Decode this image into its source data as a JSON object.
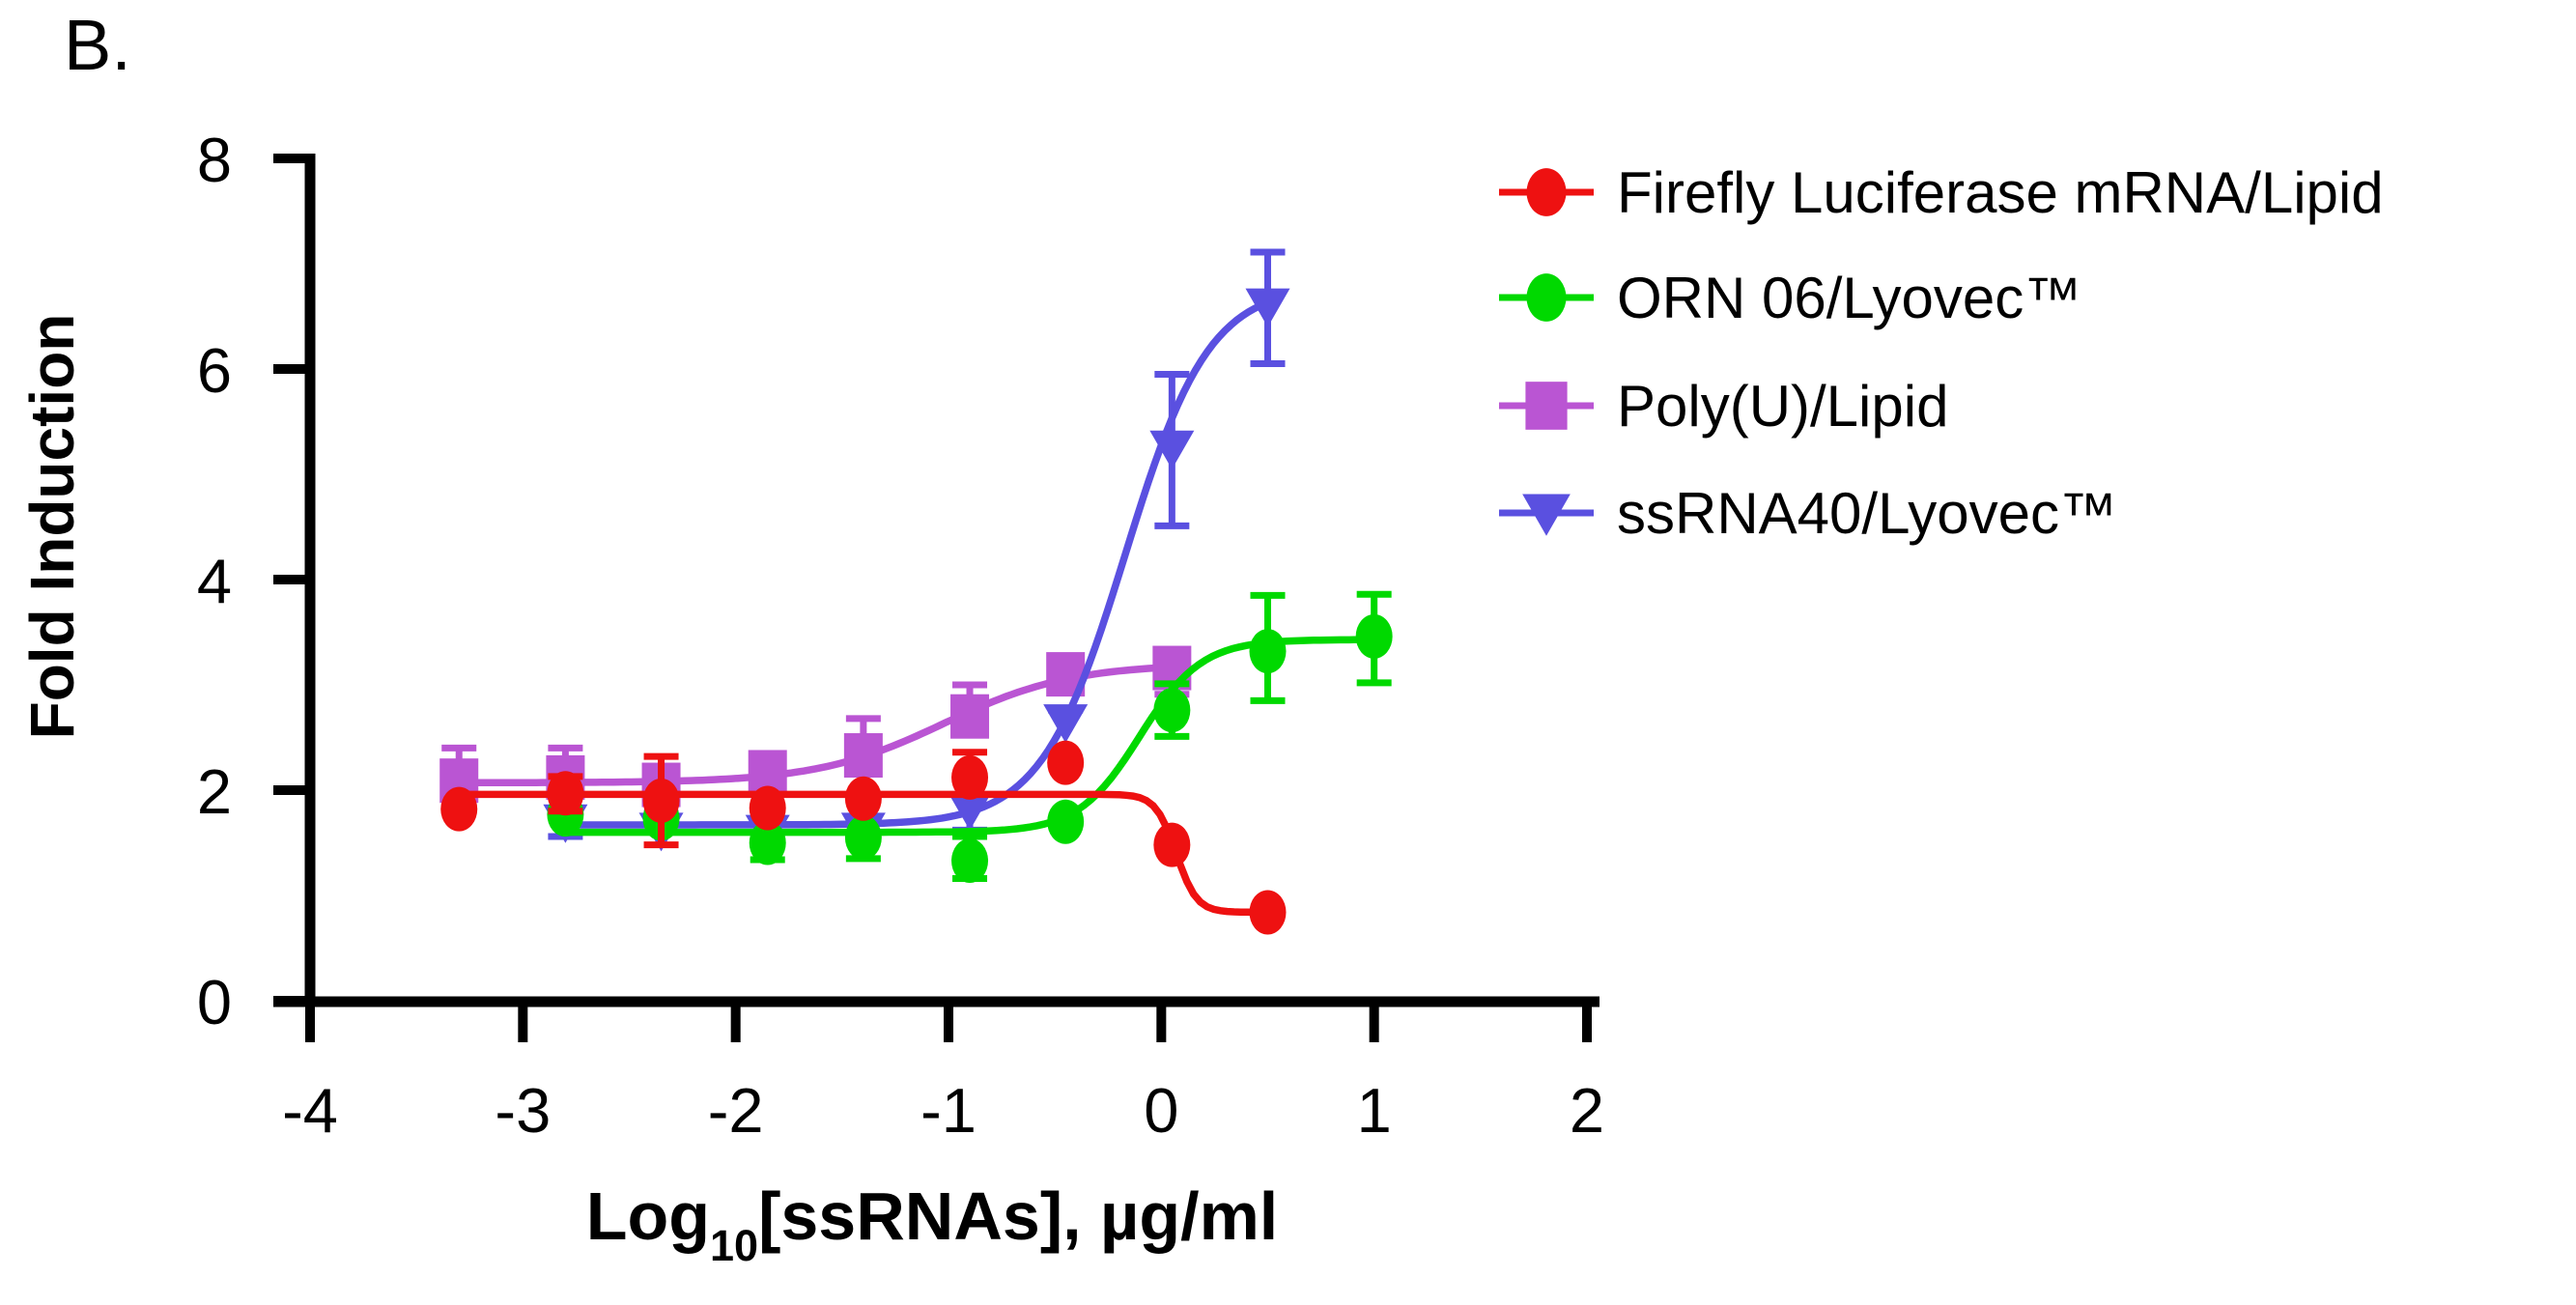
{
  "panel_label": "B.",
  "figure": {
    "background": "#ffffff",
    "axis_color": "#000000",
    "text_color": "#000000"
  },
  "chart_data": {
    "type": "scatter",
    "title": "",
    "xlabel_parts": {
      "prefix": "Log",
      "subscript": "10",
      "suffix": "[ssRNAs], µg/ml"
    },
    "ylabel": "Fold Induction",
    "xlim": [
      -4,
      2
    ],
    "ylim": [
      0,
      8
    ],
    "xticks": [
      -4,
      -3,
      -2,
      -1,
      0,
      1,
      2
    ],
    "yticks": [
      0,
      2,
      4,
      6,
      8
    ],
    "grid": false,
    "legend_position": "right",
    "draw_order": [
      "polyu",
      "ssrna40",
      "orn06",
      "firefly"
    ],
    "series": [
      {
        "id": "firefly",
        "name": "Firefly Luciferase mRNA/Lipid",
        "color": "#ee1111",
        "marker": "circle",
        "x": [
          -3.3,
          -2.8,
          -2.35,
          -1.85,
          -1.4,
          -0.9,
          -0.45,
          0.05,
          0.5
        ],
        "y": [
          1.82,
          1.97,
          1.9,
          1.83,
          1.92,
          2.12,
          2.26,
          1.48,
          0.84
        ],
        "err_up": [
          0,
          0.16,
          0.42,
          0,
          0,
          0.24,
          0,
          0,
          0
        ],
        "err_down": [
          0,
          0.17,
          0.42,
          0,
          0,
          0,
          0,
          0,
          0
        ],
        "fit": {
          "type": "4PL",
          "left": 1.96,
          "right": 0.84,
          "log_ec50": 0.07,
          "hill": 9.0,
          "x_start": -3.3,
          "x_end": 0.5
        }
      },
      {
        "id": "orn06",
        "name": "ORN 06/Lyovec™",
        "color": "#00d900",
        "marker": "circle",
        "x": [
          -2.8,
          -2.35,
          -1.85,
          -1.4,
          -0.9,
          -0.45,
          0.05,
          0.5,
          1.0
        ],
        "y": [
          1.77,
          1.73,
          1.5,
          1.55,
          1.33,
          1.7,
          2.76,
          3.32,
          3.46
        ],
        "err_up": [
          0,
          0,
          0,
          0,
          0.23,
          0,
          0.25,
          0.53,
          0.4
        ],
        "err_down": [
          0,
          0,
          0.16,
          0.2,
          0.17,
          0,
          0.25,
          0.47,
          0.44
        ],
        "fit": {
          "type": "4PL",
          "left": 1.6,
          "right": 3.43,
          "log_ec50": -0.1,
          "hill": 3.0,
          "x_start": -2.8,
          "x_end": 1.0
        }
      },
      {
        "id": "polyu",
        "name": "Poly(U)/Lipid",
        "color": "#ba55d3",
        "marker": "square",
        "x": [
          -3.3,
          -2.8,
          -2.35,
          -1.85,
          -1.4,
          -0.9,
          -0.45,
          0.05
        ],
        "y": [
          2.09,
          2.12,
          2.05,
          2.17,
          2.33,
          2.7,
          3.1,
          3.16
        ],
        "err_up": [
          0.31,
          0.28,
          0.17,
          0,
          0.35,
          0.3,
          0.1,
          0.17
        ],
        "err_down": [
          0,
          0,
          0.27,
          0,
          0,
          0,
          0,
          0.25
        ],
        "fit": {
          "type": "4PL",
          "left": 2.07,
          "right": 3.2,
          "log_ec50": -1.02,
          "hill": 1.45,
          "x_start": -3.3,
          "x_end": 0.05
        }
      },
      {
        "id": "ssrna40",
        "name": "ssRNA40/Lyovec™",
        "color": "#5a50e0",
        "marker": "triangle-down",
        "x": [
          -2.8,
          -2.35,
          -1.85,
          -1.4,
          -0.9,
          -0.45,
          0.05,
          0.5
        ],
        "y": [
          1.7,
          1.62,
          1.6,
          1.62,
          1.82,
          2.65,
          5.25,
          6.6
        ],
        "err_up": [
          0,
          0,
          0,
          0,
          0,
          0.11,
          0.7,
          0.51
        ],
        "err_down": [
          0.14,
          0,
          0,
          0,
          0.2,
          0,
          0.74,
          0.55
        ],
        "fit": {
          "type": "4PL",
          "left": 1.67,
          "right": 6.8,
          "log_ec50": -0.17,
          "hill": 2.2,
          "x_start": -2.8,
          "x_end": 0.52
        }
      }
    ]
  },
  "legend": {
    "items": [
      {
        "series_id": "firefly",
        "label": "Firefly Luciferase mRNA/Lipid"
      },
      {
        "series_id": "orn06",
        "label": "ORN 06/Lyovec™"
      },
      {
        "series_id": "polyu",
        "label": "Poly(U)/Lipid"
      },
      {
        "series_id": "ssrna40",
        "label": "ssRNA40/Lyovec™"
      }
    ]
  }
}
